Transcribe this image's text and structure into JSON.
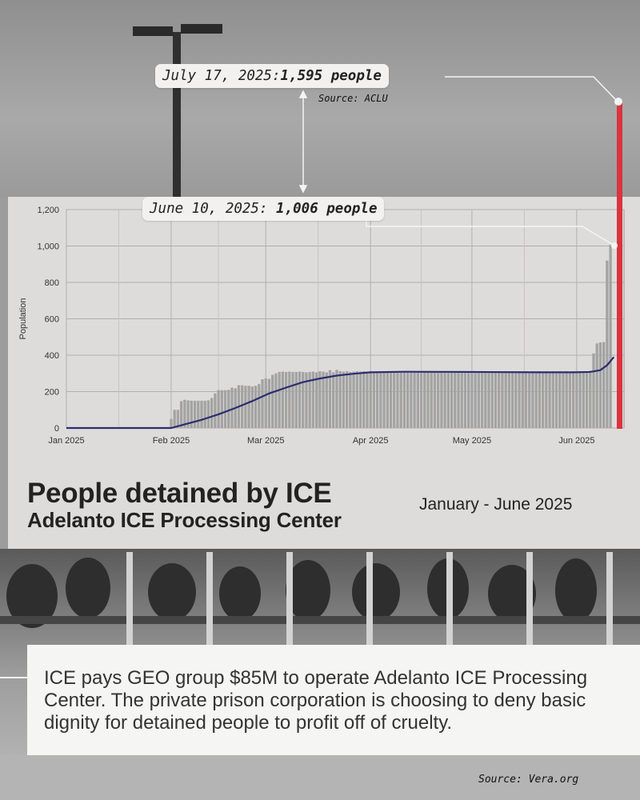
{
  "callouts": {
    "july": {
      "date": "July 17, 2025:",
      "value": "1,595 people"
    },
    "june": {
      "date": "June 10, 2025: ",
      "value": "1,006 people"
    },
    "source": "Source: ACLU"
  },
  "title": {
    "main": "People detained by ICE",
    "sub": "Adelanto ICE Processing Center",
    "date_range": "January - June 2025"
  },
  "body_text": "ICE pays GEO group $85M to operate Adelanto ICE Processing Center. The private prison corporation is choosing to deny basic dignity for detained people to profit off of cruelty.",
  "footer_source": "Source: Vera.org",
  "colors": {
    "bar": "#a3a3a3",
    "trend": "#2b2d6e",
    "highlight": "#d9343f",
    "panel": "#dedcda"
  },
  "chart_data": {
    "type": "bar",
    "ylabel": "Population",
    "ylim": [
      0,
      1200
    ],
    "yticks": [
      0,
      200,
      400,
      600,
      800,
      1000,
      1200
    ],
    "ytick_labels": [
      "0",
      "200",
      "400",
      "600",
      "800",
      "1,000",
      "1,200"
    ],
    "xlim_days": [
      0,
      165
    ],
    "xticks": [
      {
        "day": 0,
        "label": "Jan 2025"
      },
      {
        "day": 31,
        "label": "Feb 2025"
      },
      {
        "day": 59,
        "label": "Mar 2025"
      },
      {
        "day": 90,
        "label": "Apr 2025"
      },
      {
        "day": 120,
        "label": "May 2025"
      },
      {
        "day": 151,
        "label": "Jun 2025"
      }
    ],
    "bars": [
      {
        "day": 31,
        "value": 50
      },
      {
        "day": 32,
        "value": 100
      },
      {
        "day": 33,
        "value": 100
      },
      {
        "day": 34,
        "value": 148
      },
      {
        "day": 35,
        "value": 155
      },
      {
        "day": 36,
        "value": 152
      },
      {
        "day": 37,
        "value": 150
      },
      {
        "day": 38,
        "value": 150
      },
      {
        "day": 39,
        "value": 150
      },
      {
        "day": 40,
        "value": 150
      },
      {
        "day": 41,
        "value": 150
      },
      {
        "day": 42,
        "value": 152
      },
      {
        "day": 43,
        "value": 165
      },
      {
        "day": 44,
        "value": 190
      },
      {
        "day": 45,
        "value": 208
      },
      {
        "day": 46,
        "value": 208
      },
      {
        "day": 47,
        "value": 208
      },
      {
        "day": 48,
        "value": 210
      },
      {
        "day": 49,
        "value": 222
      },
      {
        "day": 50,
        "value": 218
      },
      {
        "day": 51,
        "value": 235
      },
      {
        "day": 52,
        "value": 235
      },
      {
        "day": 53,
        "value": 232
      },
      {
        "day": 54,
        "value": 232
      },
      {
        "day": 55,
        "value": 228
      },
      {
        "day": 56,
        "value": 232
      },
      {
        "day": 57,
        "value": 242
      },
      {
        "day": 58,
        "value": 268
      },
      {
        "day": 59,
        "value": 272
      },
      {
        "day": 60,
        "value": 270
      },
      {
        "day": 61,
        "value": 292
      },
      {
        "day": 62,
        "value": 300
      },
      {
        "day": 63,
        "value": 308
      },
      {
        "day": 64,
        "value": 310
      },
      {
        "day": 65,
        "value": 308
      },
      {
        "day": 66,
        "value": 310
      },
      {
        "day": 67,
        "value": 308
      },
      {
        "day": 68,
        "value": 308
      },
      {
        "day": 69,
        "value": 310
      },
      {
        "day": 70,
        "value": 308
      },
      {
        "day": 71,
        "value": 306
      },
      {
        "day": 72,
        "value": 308
      },
      {
        "day": 73,
        "value": 310
      },
      {
        "day": 74,
        "value": 306
      },
      {
        "day": 75,
        "value": 312
      },
      {
        "day": 76,
        "value": 310
      },
      {
        "day": 77,
        "value": 306
      },
      {
        "day": 78,
        "value": 318
      },
      {
        "day": 79,
        "value": 306
      },
      {
        "day": 80,
        "value": 320
      },
      {
        "day": 81,
        "value": 312
      },
      {
        "day": 82,
        "value": 310
      },
      {
        "day": 83,
        "value": 312
      },
      {
        "day": 84,
        "value": 308
      },
      {
        "day": 85,
        "value": 310
      },
      {
        "day": 86,
        "value": 312
      },
      {
        "day": 87,
        "value": 310
      },
      {
        "day": 88,
        "value": 312
      },
      {
        "day": 89,
        "value": 310
      },
      {
        "day": 90,
        "value": 312
      },
      {
        "day": 91,
        "value": 310
      },
      {
        "day": 92,
        "value": 312
      },
      {
        "day": 93,
        "value": 310
      },
      {
        "day": 94,
        "value": 312
      },
      {
        "day": 95,
        "value": 310
      },
      {
        "day": 96,
        "value": 312
      },
      {
        "day": 97,
        "value": 310
      },
      {
        "day": 98,
        "value": 312
      },
      {
        "day": 99,
        "value": 310
      },
      {
        "day": 100,
        "value": 312
      },
      {
        "day": 101,
        "value": 310
      },
      {
        "day": 102,
        "value": 312
      },
      {
        "day": 103,
        "value": 310
      },
      {
        "day": 104,
        "value": 312
      },
      {
        "day": 105,
        "value": 310
      },
      {
        "day": 106,
        "value": 312
      },
      {
        "day": 107,
        "value": 310
      },
      {
        "day": 108,
        "value": 312
      },
      {
        "day": 109,
        "value": 310
      },
      {
        "day": 110,
        "value": 312
      },
      {
        "day": 111,
        "value": 310
      },
      {
        "day": 112,
        "value": 312
      },
      {
        "day": 113,
        "value": 310
      },
      {
        "day": 114,
        "value": 312
      },
      {
        "day": 115,
        "value": 310
      },
      {
        "day": 116,
        "value": 312
      },
      {
        "day": 117,
        "value": 310
      },
      {
        "day": 118,
        "value": 312
      },
      {
        "day": 119,
        "value": 310
      },
      {
        "day": 120,
        "value": 312
      },
      {
        "day": 121,
        "value": 310
      },
      {
        "day": 122,
        "value": 312
      },
      {
        "day": 123,
        "value": 310
      },
      {
        "day": 124,
        "value": 312
      },
      {
        "day": 125,
        "value": 310
      },
      {
        "day": 126,
        "value": 312
      },
      {
        "day": 127,
        "value": 310
      },
      {
        "day": 128,
        "value": 312
      },
      {
        "day": 129,
        "value": 310
      },
      {
        "day": 130,
        "value": 312
      },
      {
        "day": 131,
        "value": 310
      },
      {
        "day": 132,
        "value": 312
      },
      {
        "day": 133,
        "value": 310
      },
      {
        "day": 134,
        "value": 312
      },
      {
        "day": 135,
        "value": 310
      },
      {
        "day": 136,
        "value": 312
      },
      {
        "day": 137,
        "value": 310
      },
      {
        "day": 138,
        "value": 312
      },
      {
        "day": 139,
        "value": 310
      },
      {
        "day": 140,
        "value": 312
      },
      {
        "day": 141,
        "value": 310
      },
      {
        "day": 142,
        "value": 312
      },
      {
        "day": 143,
        "value": 310
      },
      {
        "day": 144,
        "value": 312
      },
      {
        "day": 145,
        "value": 310
      },
      {
        "day": 146,
        "value": 312
      },
      {
        "day": 147,
        "value": 310
      },
      {
        "day": 148,
        "value": 312
      },
      {
        "day": 149,
        "value": 310
      },
      {
        "day": 150,
        "value": 312
      },
      {
        "day": 151,
        "value": 310
      },
      {
        "day": 152,
        "value": 312
      },
      {
        "day": 153,
        "value": 310
      },
      {
        "day": 154,
        "value": 312
      },
      {
        "day": 155,
        "value": 315
      },
      {
        "day": 156,
        "value": 410
      },
      {
        "day": 157,
        "value": 465
      },
      {
        "day": 158,
        "value": 470
      },
      {
        "day": 159,
        "value": 472
      },
      {
        "day": 160,
        "value": 920
      },
      {
        "day": 161,
        "value": 1006
      }
    ],
    "trend_line": [
      {
        "day": 0,
        "value": 0
      },
      {
        "day": 31,
        "value": 0
      },
      {
        "day": 35,
        "value": 20
      },
      {
        "day": 40,
        "value": 45
      },
      {
        "day": 45,
        "value": 75
      },
      {
        "day": 50,
        "value": 110
      },
      {
        "day": 55,
        "value": 148
      },
      {
        "day": 60,
        "value": 190
      },
      {
        "day": 65,
        "value": 222
      },
      {
        "day": 70,
        "value": 252
      },
      {
        "day": 75,
        "value": 272
      },
      {
        "day": 80,
        "value": 288
      },
      {
        "day": 85,
        "value": 298
      },
      {
        "day": 90,
        "value": 306
      },
      {
        "day": 100,
        "value": 309
      },
      {
        "day": 120,
        "value": 308
      },
      {
        "day": 140,
        "value": 306
      },
      {
        "day": 150,
        "value": 306
      },
      {
        "day": 155,
        "value": 308
      },
      {
        "day": 158,
        "value": 318
      },
      {
        "day": 160,
        "value": 345
      },
      {
        "day": 162,
        "value": 390
      }
    ],
    "highlight_points": [
      {
        "label": "June 10, 2025",
        "value": 1006
      },
      {
        "label": "July 17, 2025",
        "value": 1595
      }
    ]
  }
}
